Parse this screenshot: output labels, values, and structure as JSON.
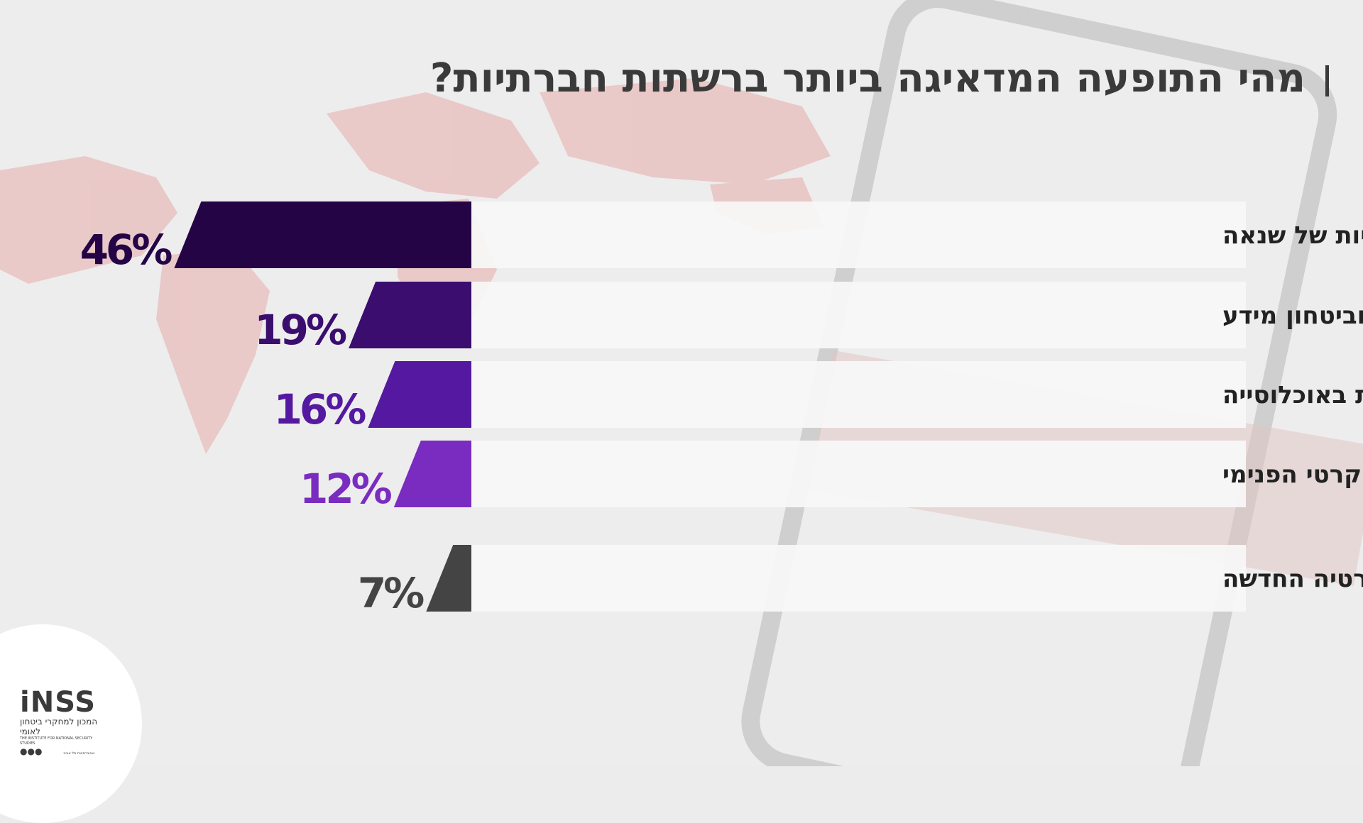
{
  "title": "מהי התופעה המדאיגה ביותר ברשתות חברתיות?",
  "logo": {
    "main": "iNSS",
    "hebrew": "המכון למחקרי ביטחון לאומי",
    "english": "THE INSTITUTE FOR NATIONAL SECURITY STUDIES",
    "university": "אוניברסיטת תל אביב"
  },
  "colors": {
    "bar_1": "#250446",
    "bar_2": "#3b0d6f",
    "bar_3": "#5419a0",
    "bar_4": "#7a2cc1",
    "bar_5": "#444444",
    "label_panel": "#f7f7f7",
    "title": "#3a3a3a"
  },
  "chart_data": {
    "type": "bar",
    "orientation": "horizontal",
    "categories": [
      "בריונות והתבטאויות של שנאה",
      "היעדר פרטיות וביטחון מידע",
      "הגברת הקיטוב בין קבוצות באוכלוסייה",
      "התערבות גורמים זרים ומקומיים על השיח הדמוקרטי הפנימי",
      "אני לא מודאג.ת, זו הדמוקרטיה החדשה"
    ],
    "values": [
      46,
      19,
      16,
      12,
      7
    ],
    "value_labels": [
      "46%",
      "19%",
      "16%",
      "12%",
      "7%"
    ],
    "unit": "%",
    "xlim": [
      0,
      50
    ],
    "grid": false,
    "legend": "none"
  }
}
